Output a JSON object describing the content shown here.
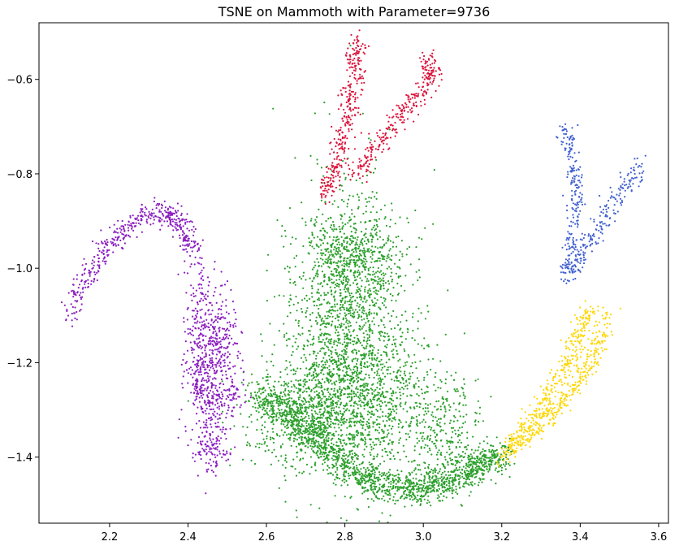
{
  "chart_data": {
    "type": "scatter",
    "title": "TSNE on Mammoth with Parameter=9736",
    "xlabel": "",
    "ylabel": "",
    "xlim": [
      2.02,
      3.625
    ],
    "ylim": [
      -1.54,
      -0.48
    ],
    "xticks": [
      2.2,
      2.4,
      2.6,
      2.8,
      3.0,
      3.2,
      3.4,
      3.6
    ],
    "xtick_labels": [
      "2.2",
      "2.4",
      "2.6",
      "2.8",
      "3.0",
      "3.2",
      "3.4",
      "3.6"
    ],
    "yticks": [
      -0.6,
      -0.8,
      -1.0,
      -1.2,
      -1.4
    ],
    "ytick_labels": [
      "−0.6",
      "−0.8",
      "−1.0",
      "−1.2",
      "−1.4"
    ],
    "grid": false,
    "legend": "none",
    "series": [
      {
        "color": "#2ca02c",
        "clusters": [
          {
            "cx": 2.8,
            "cy": -1.1,
            "sx": 0.07,
            "sy": 0.14,
            "n": 1400
          },
          {
            "cx": 2.73,
            "cy": -1.3,
            "sx": 0.09,
            "sy": 0.06,
            "n": 900
          },
          {
            "cx": 2.9,
            "cy": -1.28,
            "sx": 0.08,
            "sy": 0.1,
            "n": 600
          },
          {
            "cx": 2.82,
            "cy": -0.97,
            "sx": 0.06,
            "sy": 0.04,
            "n": 350
          },
          {
            "cx": 3.05,
            "cy": -1.35,
            "sx": 0.05,
            "sy": 0.06,
            "n": 250
          }
        ],
        "arc": {
          "x": [
            2.58,
            2.66,
            2.74,
            2.82,
            2.9,
            2.98,
            3.06,
            3.14,
            3.2
          ],
          "y": [
            -1.27,
            -1.31,
            -1.37,
            -1.43,
            -1.46,
            -1.47,
            -1.45,
            -1.42,
            -1.39
          ],
          "n": 1500,
          "spread": 0.018
        }
      },
      {
        "color": "#8b1fbf",
        "arcs": [
          {
            "x": [
              2.1,
              2.14,
              2.2,
              2.27,
              2.33,
              2.38,
              2.41
            ],
            "y": [
              -1.1,
              -1.02,
              -0.95,
              -0.9,
              -0.88,
              -0.9,
              -0.96
            ],
            "n": 450,
            "spread": 0.012
          },
          {
            "x": [
              2.41,
              2.43,
              2.43,
              2.42,
              2.45,
              2.5,
              2.53
            ],
            "y": [
              -0.96,
              -1.05,
              -1.15,
              -1.25,
              -1.28,
              -1.28,
              -1.27
            ],
            "n": 250,
            "spread": 0.018
          }
        ],
        "clusters": [
          {
            "cx": 2.45,
            "cy": -1.2,
            "sx": 0.03,
            "sy": 0.08,
            "n": 350
          },
          {
            "cx": 2.49,
            "cy": -1.15,
            "sx": 0.02,
            "sy": 0.05,
            "n": 120
          },
          {
            "cx": 2.46,
            "cy": -1.37,
            "sx": 0.025,
            "sy": 0.03,
            "n": 130
          }
        ]
      },
      {
        "color": "#dc143c",
        "arcs": [
          {
            "x": [
              2.75,
              2.77,
              2.79,
              2.81,
              2.82,
              2.83,
              2.83
            ],
            "y": [
              -0.85,
              -0.8,
              -0.74,
              -0.68,
              -0.61,
              -0.56,
              -0.52
            ],
            "n": 330,
            "spread": 0.012
          },
          {
            "x": [
              2.82,
              2.87,
              2.92,
              2.96,
              3.0,
              3.03,
              3.0
            ],
            "y": [
              -0.8,
              -0.76,
              -0.7,
              -0.66,
              -0.62,
              -0.58,
              -0.56
            ],
            "n": 300,
            "spread": 0.012
          }
        ]
      },
      {
        "color": "#4060d0",
        "arcs": [
          {
            "x": [
              3.36,
              3.38,
              3.39,
              3.39,
              3.38,
              3.37
            ],
            "y": [
              -0.7,
              -0.75,
              -0.82,
              -0.88,
              -0.95,
              -1.02
            ],
            "n": 230,
            "spread": 0.01
          },
          {
            "x": [
              3.37,
              3.4,
              3.44,
              3.48,
              3.52,
              3.55
            ],
            "y": [
              -1.02,
              -0.97,
              -0.92,
              -0.87,
              -0.82,
              -0.78
            ],
            "n": 200,
            "spread": 0.011
          }
        ]
      },
      {
        "color": "#ffd700",
        "arcs": [
          {
            "x": [
              3.2,
              3.26,
              3.32,
              3.37,
              3.4,
              3.42
            ],
            "y": [
              -1.4,
              -1.34,
              -1.27,
              -1.2,
              -1.14,
              -1.08
            ],
            "n": 350,
            "spread": 0.013
          },
          {
            "x": [
              3.23,
              3.3,
              3.37,
              3.43,
              3.47
            ],
            "y": [
              -1.38,
              -1.33,
              -1.27,
              -1.19,
              -1.1
            ],
            "n": 320,
            "spread": 0.011
          }
        ]
      }
    ]
  }
}
